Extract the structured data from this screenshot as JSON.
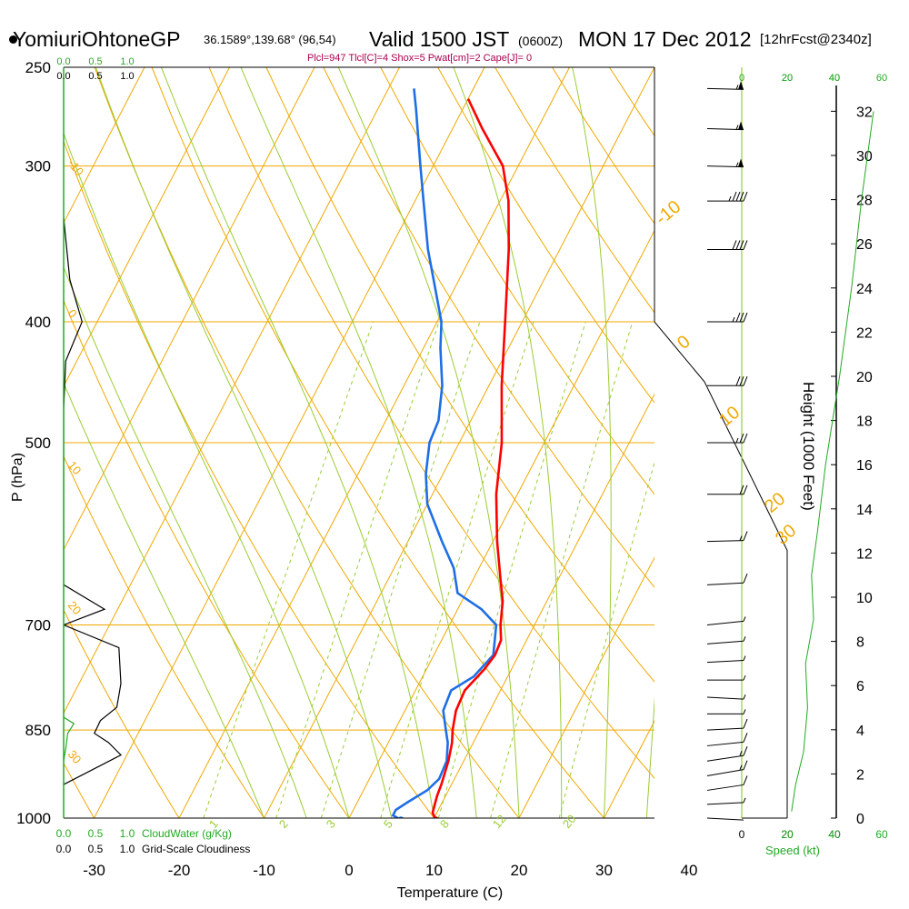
{
  "header": {
    "station": "YomiuriOhtoneGP",
    "coords": "36.1589°,139.68° (96,54)",
    "valid": "Valid 1500 JST",
    "zulu": "(0600Z)",
    "date": "MON 17 Dec 2012",
    "forecast": "[12hrFcst@2340z]",
    "indices": "Plcl=947 Tlcl[C]=4 Shox=5 Pwat[cm]=2 Cape[J]= 0"
  },
  "colors": {
    "isotherm": "#f0a800",
    "dry_adiabat": "#f0a800",
    "moist_adiabat": "#9acd32",
    "mixing_ratio": "#9acd32",
    "temperature": "#ff0000",
    "dewpoint": "#1e6ee6",
    "cloudwater": "#22aa22",
    "height_curve": "#22aa22",
    "wind_barbs": "#000000"
  },
  "chart_data": {
    "type": "skew-t",
    "xlabel": "Temperature (C)",
    "ylabel": "P (hPa)",
    "y2label": "Height (1000 Feet)",
    "x_ticks": [
      -30,
      -20,
      -10,
      0,
      10,
      20,
      30,
      40
    ],
    "p_ticks": [
      250,
      300,
      400,
      500,
      700,
      850,
      1000
    ],
    "height_ticks": [
      0,
      2,
      4,
      6,
      8,
      10,
      12,
      14,
      16,
      18,
      20,
      22,
      24,
      26,
      28,
      30,
      32
    ],
    "isotherm_labels": [
      {
        "t": -10,
        "text": "-10"
      },
      {
        "t": 0,
        "text": "0"
      },
      {
        "t": 10,
        "text": "10"
      },
      {
        "t": 20,
        "text": "20"
      },
      {
        "t": 30,
        "text": "30"
      }
    ],
    "dry_adiabat_labels": [
      {
        "text": "-10",
        "side": "left"
      },
      {
        "text": "0",
        "side": "left"
      },
      {
        "text": "10",
        "side": "left"
      },
      {
        "text": "20",
        "side": "left"
      },
      {
        "text": "30",
        "side": "left"
      }
    ],
    "mixing_ratio_labels": [
      "1",
      "2",
      "3",
      "5",
      "8",
      "12",
      "20"
    ],
    "bottom_scales": {
      "cloudwater_ticks": [
        "0.0",
        "0.5",
        "1.0"
      ],
      "cloudwater_label": "CloudWater (g/Kg)",
      "cloudiness_ticks": [
        "0.0",
        "0.5",
        "1.0"
      ],
      "cloudiness_label": "Grid-Scale Cloudiness"
    },
    "top_scales": {
      "cloudwater_ticks": [
        "0.0",
        "0.5",
        "1.0"
      ],
      "cloudiness_ticks": [
        "0.0",
        "0.5",
        "1.0"
      ]
    },
    "speed_scale": {
      "black_ticks": [
        "0",
        "20",
        "40"
      ],
      "green_ticks": [
        "20",
        "40",
        "60"
      ],
      "top_black_ticks": [
        "0",
        "20",
        "40"
      ],
      "top_green_ticks": [
        "20",
        "40",
        "60"
      ],
      "label": "Speed (kt)"
    },
    "temperature": [
      {
        "p": 1003,
        "t": 10.3
      },
      {
        "p": 990,
        "t": 9.5
      },
      {
        "p": 960,
        "t": 9.0
      },
      {
        "p": 940,
        "t": 8.8
      },
      {
        "p": 900,
        "t": 8.2
      },
      {
        "p": 870,
        "t": 7.5
      },
      {
        "p": 850,
        "t": 6.8
      },
      {
        "p": 820,
        "t": 6.0
      },
      {
        "p": 790,
        "t": 5.8
      },
      {
        "p": 760,
        "t": 6.8
      },
      {
        "p": 740,
        "t": 7.2
      },
      {
        "p": 720,
        "t": 7.0
      },
      {
        "p": 700,
        "t": 6.0
      },
      {
        "p": 670,
        "t": 4.8
      },
      {
        "p": 640,
        "t": 3.0
      },
      {
        "p": 600,
        "t": 0.5
      },
      {
        "p": 550,
        "t": -2.5
      },
      {
        "p": 500,
        "t": -5.0
      },
      {
        "p": 450,
        "t": -8.5
      },
      {
        "p": 400,
        "t": -12.0
      },
      {
        "p": 350,
        "t": -16.0
      },
      {
        "p": 320,
        "t": -19.0
      },
      {
        "p": 300,
        "t": -21.8
      },
      {
        "p": 280,
        "t": -26.5
      },
      {
        "p": 265,
        "t": -30.0
      }
    ],
    "dewpoint": [
      {
        "p": 1003,
        "t": 6.2
      },
      {
        "p": 995,
        "t": 5.0
      },
      {
        "p": 985,
        "t": 5.0
      },
      {
        "p": 970,
        "t": 6.0
      },
      {
        "p": 950,
        "t": 7.5
      },
      {
        "p": 930,
        "t": 8.2
      },
      {
        "p": 900,
        "t": 8.0
      },
      {
        "p": 870,
        "t": 7.0
      },
      {
        "p": 850,
        "t": 6.0
      },
      {
        "p": 820,
        "t": 4.5
      },
      {
        "p": 790,
        "t": 4.2
      },
      {
        "p": 770,
        "t": 6.0
      },
      {
        "p": 740,
        "t": 7.0
      },
      {
        "p": 700,
        "t": 5.5
      },
      {
        "p": 680,
        "t": 2.8
      },
      {
        "p": 660,
        "t": -1.0
      },
      {
        "p": 630,
        "t": -3.0
      },
      {
        "p": 600,
        "t": -6.0
      },
      {
        "p": 560,
        "t": -10.0
      },
      {
        "p": 530,
        "t": -12.0
      },
      {
        "p": 500,
        "t": -13.5
      },
      {
        "p": 480,
        "t": -13.8
      },
      {
        "p": 450,
        "t": -15.5
      },
      {
        "p": 420,
        "t": -18.0
      },
      {
        "p": 400,
        "t": -19.5
      },
      {
        "p": 370,
        "t": -23.0
      },
      {
        "p": 350,
        "t": -25.5
      },
      {
        "p": 320,
        "t": -29.0
      },
      {
        "p": 300,
        "t": -31.5
      },
      {
        "p": 270,
        "t": -35.5
      },
      {
        "p": 260,
        "t": -37.0
      }
    ],
    "cloudiness_profile": [
      {
        "p": 330,
        "v": 0.0
      },
      {
        "p": 370,
        "v": 0.15
      },
      {
        "p": 400,
        "v": 0.45
      },
      {
        "p": 430,
        "v": 0.05
      },
      {
        "p": 470,
        "v": 0.0
      },
      {
        "p": 650,
        "v": 0.0
      },
      {
        "p": 680,
        "v": 1.0
      },
      {
        "p": 700,
        "v": 0.0
      },
      {
        "p": 730,
        "v": 1.35
      },
      {
        "p": 780,
        "v": 1.4
      },
      {
        "p": 815,
        "v": 1.3
      },
      {
        "p": 835,
        "v": 0.9
      },
      {
        "p": 855,
        "v": 0.75
      },
      {
        "p": 870,
        "v": 1.1
      },
      {
        "p": 890,
        "v": 1.4
      },
      {
        "p": 940,
        "v": 0.0
      }
    ],
    "cloudwater_profile": [
      {
        "p": 830,
        "v": 0.0
      },
      {
        "p": 840,
        "v": 0.25
      },
      {
        "p": 855,
        "v": 0.1
      },
      {
        "p": 880,
        "v": 0.05
      },
      {
        "p": 900,
        "v": 0.0
      }
    ],
    "height_curve": [
      {
        "h": 0.3,
        "x": 0.7
      },
      {
        "h": 1.5,
        "x": 0.8
      },
      {
        "h": 3,
        "x": 1.0
      },
      {
        "h": 5,
        "x": 1.1
      },
      {
        "h": 7,
        "x": 1.05
      },
      {
        "h": 9,
        "x": 1.25
      },
      {
        "h": 11,
        "x": 1.2
      },
      {
        "h": 13,
        "x": 1.35
      },
      {
        "h": 16,
        "x": 1.55
      },
      {
        "h": 20,
        "x": 1.9
      },
      {
        "h": 24,
        "x": 2.2
      },
      {
        "h": 28,
        "x": 2.45
      },
      {
        "h": 32,
        "x": 2.75
      }
    ],
    "winds": [
      {
        "p": 1000,
        "spd": 2,
        "dir": 260
      },
      {
        "p": 975,
        "spd": 8,
        "dir": 280
      },
      {
        "p": 950,
        "spd": 14,
        "dir": 300
      },
      {
        "p": 925,
        "spd": 16,
        "dir": 305
      },
      {
        "p": 900,
        "spd": 15,
        "dir": 300
      },
      {
        "p": 875,
        "spd": 12,
        "dir": 290
      },
      {
        "p": 850,
        "spd": 10,
        "dir": 280
      },
      {
        "p": 825,
        "spd": 8,
        "dir": 270
      },
      {
        "p": 800,
        "spd": 6,
        "dir": 260
      },
      {
        "p": 775,
        "spd": 5,
        "dir": 270
      },
      {
        "p": 750,
        "spd": 5,
        "dir": 280
      },
      {
        "p": 725,
        "spd": 5,
        "dir": 285
      },
      {
        "p": 700,
        "spd": 5,
        "dir": 290
      },
      {
        "p": 650,
        "spd": 10,
        "dir": 280
      },
      {
        "p": 600,
        "spd": 15,
        "dir": 275
      },
      {
        "p": 550,
        "spd": 20,
        "dir": 270
      },
      {
        "p": 500,
        "spd": 25,
        "dir": 270
      },
      {
        "p": 450,
        "spd": 30,
        "dir": 270
      },
      {
        "p": 400,
        "spd": 35,
        "dir": 270
      },
      {
        "p": 350,
        "spd": 40,
        "dir": 270
      },
      {
        "p": 320,
        "spd": 45,
        "dir": 270
      },
      {
        "p": 300,
        "spd": 55,
        "dir": 265
      },
      {
        "p": 280,
        "spd": 55,
        "dir": 265
      },
      {
        "p": 260,
        "spd": 55,
        "dir": 265
      }
    ]
  }
}
